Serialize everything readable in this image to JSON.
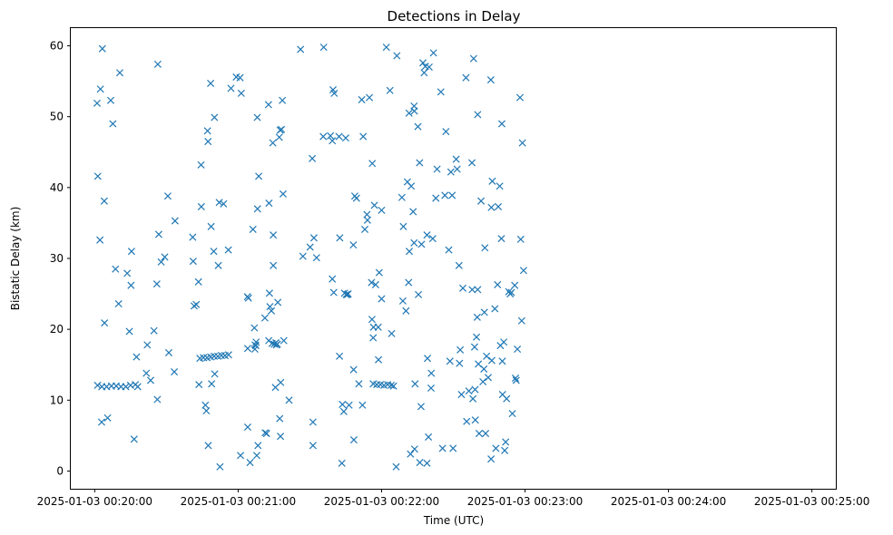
{
  "chart_data": {
    "type": "scatter",
    "title": "Detections in Delay",
    "xlabel": "Time (UTC)",
    "ylabel": "Bistatic Delay (km)",
    "marker": "x",
    "color": "#1f77b4",
    "x_unit": "seconds after 2025-01-03 00:20:00",
    "xlim": [
      -10,
      310
    ],
    "ylim": [
      -2.5,
      62.5
    ],
    "xticks": [
      {
        "value": 0,
        "label": "2025-01-03 00:20:00"
      },
      {
        "value": 60,
        "label": "2025-01-03 00:21:00"
      },
      {
        "value": 120,
        "label": "2025-01-03 00:22:00"
      },
      {
        "value": 180,
        "label": "2025-01-03 00:23:00"
      },
      {
        "value": 240,
        "label": "2025-01-03 00:24:00"
      },
      {
        "value": 300,
        "label": "2025-01-03 00:25:00"
      }
    ],
    "yticks": [
      {
        "value": 0,
        "label": "0"
      },
      {
        "value": 10,
        "label": "10"
      },
      {
        "value": 20,
        "label": "20"
      },
      {
        "value": 30,
        "label": "30"
      },
      {
        "value": 40,
        "label": "40"
      },
      {
        "value": 50,
        "label": "50"
      },
      {
        "value": 60,
        "label": "60"
      }
    ],
    "points": [
      [
        1,
        51.9
      ],
      [
        1.3,
        41.6
      ],
      [
        2.2,
        32.6
      ],
      [
        2.4,
        53.9
      ],
      [
        3.2,
        59.6
      ],
      [
        4,
        38.1
      ],
      [
        4.1,
        20.9
      ],
      [
        5.4,
        7.5
      ],
      [
        2.9,
        6.9
      ],
      [
        6.7,
        52.3
      ],
      [
        7.6,
        49
      ],
      [
        8.7,
        28.5
      ],
      [
        10.5,
        56.2
      ],
      [
        10,
        23.6
      ],
      [
        13.6,
        27.9
      ],
      [
        14.5,
        19.7
      ],
      [
        15.4,
        31
      ],
      [
        15.2,
        26.2
      ],
      [
        16.5,
        4.5
      ],
      [
        17.5,
        16.1
      ],
      [
        1.2,
        12.1
      ],
      [
        3,
        11.9
      ],
      [
        5,
        11.9
      ],
      [
        7,
        12
      ],
      [
        9,
        12
      ],
      [
        11,
        11.9
      ],
      [
        13,
        11.9
      ],
      [
        15,
        12.1
      ],
      [
        17,
        12.2
      ],
      [
        18,
        11.9
      ],
      [
        21.6,
        13.8
      ],
      [
        22,
        17.8
      ],
      [
        23.4,
        12.8
      ],
      [
        24.8,
        19.8
      ],
      [
        26,
        26.4
      ],
      [
        26.2,
        10.1
      ],
      [
        26.4,
        57.4
      ],
      [
        26.8,
        33.4
      ],
      [
        27.8,
        29.5
      ],
      [
        29.3,
        30.2
      ],
      [
        30.6,
        38.8
      ],
      [
        31,
        16.7
      ],
      [
        33.3,
        14
      ],
      [
        33.6,
        35.3
      ],
      [
        41,
        33
      ],
      [
        41.2,
        29.6
      ],
      [
        41.6,
        23.3
      ],
      [
        42.5,
        23.5
      ],
      [
        43.4,
        26.7
      ],
      [
        43.6,
        12.2
      ],
      [
        44.6,
        37.3
      ],
      [
        44.5,
        43.2
      ],
      [
        46.3,
        9.3
      ],
      [
        46.7,
        8.5
      ],
      [
        47.2,
        48
      ],
      [
        47.4,
        46.5
      ],
      [
        47.5,
        3.6
      ],
      [
        48.5,
        54.7
      ],
      [
        48.7,
        34.5
      ],
      [
        48.9,
        12.3
      ],
      [
        49.8,
        31
      ],
      [
        50.1,
        49.9
      ],
      [
        50.2,
        13.7
      ],
      [
        51.7,
        29
      ],
      [
        52.1,
        37.9
      ],
      [
        52.4,
        0.6
      ],
      [
        53.9,
        37.7
      ],
      [
        55.9,
        31.2
      ],
      [
        57,
        54
      ],
      [
        59.2,
        55.6
      ],
      [
        60.8,
        55.5
      ],
      [
        61.3,
        53.3
      ],
      [
        44,
        15.9
      ],
      [
        45.5,
        16
      ],
      [
        47,
        16
      ],
      [
        48.5,
        16.1
      ],
      [
        50,
        16.2
      ],
      [
        51.5,
        16.2
      ],
      [
        53,
        16.3
      ],
      [
        54.5,
        16.3
      ],
      [
        56,
        16.4
      ],
      [
        61,
        2.2
      ],
      [
        63.9,
        24.6
      ],
      [
        64.3,
        24.4
      ],
      [
        64,
        6.2
      ],
      [
        64,
        17.3
      ],
      [
        65,
        1.2
      ],
      [
        66.2,
        34.1
      ],
      [
        66.8,
        20.2
      ],
      [
        67,
        17.2
      ],
      [
        67.1,
        17.8
      ],
      [
        67.4,
        17.7
      ],
      [
        67.5,
        18.2
      ],
      [
        67.8,
        2.2
      ],
      [
        68,
        49.9
      ],
      [
        68.1,
        37
      ],
      [
        68.3,
        3.6
      ],
      [
        68.6,
        41.6
      ],
      [
        71.2,
        21.6
      ],
      [
        71.3,
        5.4
      ],
      [
        71.9,
        5.3
      ],
      [
        72.7,
        51.7
      ],
      [
        72.9,
        37.8
      ],
      [
        72.8,
        18.4
      ],
      [
        73.1,
        25.1
      ],
      [
        73.3,
        23.2
      ],
      [
        73.9,
        22.6
      ],
      [
        74.2,
        18
      ],
      [
        74.5,
        46.3
      ],
      [
        74.7,
        33.3
      ],
      [
        74.7,
        29
      ],
      [
        75.1,
        17.9
      ],
      [
        75.6,
        11.8
      ],
      [
        75.8,
        18.1
      ],
      [
        76,
        17.8
      ],
      [
        76.4,
        17.9
      ],
      [
        76.6,
        23.8
      ],
      [
        77.2,
        47.1
      ],
      [
        77.4,
        7.4
      ],
      [
        77.6,
        48.1
      ],
      [
        77.7,
        4.9
      ],
      [
        77.8,
        12.5
      ],
      [
        78.1,
        48.2
      ],
      [
        78.5,
        52.3
      ],
      [
        78.8,
        39.1
      ],
      [
        79.1,
        18.4
      ],
      [
        81.3,
        10
      ],
      [
        86.1,
        59.5
      ],
      [
        87.1,
        30.3
      ],
      [
        90.1,
        31.6
      ],
      [
        91,
        44.1
      ],
      [
        91.3,
        6.9
      ],
      [
        91.7,
        32.9
      ],
      [
        91.3,
        3.6
      ],
      [
        92.8,
        30.1
      ],
      [
        95.8,
        59.8
      ],
      [
        95.6,
        47.2
      ],
      [
        98.6,
        47.3
      ],
      [
        99.4,
        46.6
      ],
      [
        99.4,
        27.1
      ],
      [
        99.7,
        53.8
      ],
      [
        100,
        25.2
      ],
      [
        100.2,
        53.3
      ],
      [
        102.2,
        47.2
      ],
      [
        102.4,
        16.2
      ],
      [
        102.5,
        32.9
      ],
      [
        103.4,
        1.1
      ],
      [
        103.6,
        9.4
      ],
      [
        104.2,
        8.4
      ],
      [
        104.5,
        25.1
      ],
      [
        105,
        47
      ],
      [
        105.2,
        24.9
      ],
      [
        105.7,
        24.9
      ],
      [
        106,
        25
      ],
      [
        106.4,
        9.3
      ],
      [
        108.2,
        31.9
      ],
      [
        108.3,
        14.3
      ],
      [
        108.4,
        4.4
      ],
      [
        108.8,
        38.8
      ],
      [
        109.5,
        38.5
      ],
      [
        110.5,
        12.3
      ],
      [
        111.7,
        52.4
      ],
      [
        112,
        9.3
      ],
      [
        112.3,
        47.2
      ],
      [
        113,
        34.1
      ],
      [
        113.9,
        36.2
      ],
      [
        114.1,
        35.4
      ],
      [
        114.9,
        52.7
      ],
      [
        115.8,
        26.6
      ],
      [
        116,
        21.4
      ],
      [
        116.1,
        43.4
      ],
      [
        116.5,
        18.8
      ],
      [
        116.6,
        20.3
      ],
      [
        117,
        37.5
      ],
      [
        117.5,
        26.3
      ],
      [
        118.7,
        15.7
      ],
      [
        118.6,
        20.3
      ],
      [
        119,
        28
      ],
      [
        120,
        24.3
      ],
      [
        120,
        36.8
      ],
      [
        116.5,
        12.3
      ],
      [
        118,
        12.2
      ],
      [
        119.5,
        12.2
      ],
      [
        121,
        12.1
      ],
      [
        122.5,
        12.2
      ],
      [
        124,
        12.1
      ],
      [
        125,
        12
      ],
      [
        122,
        59.8
      ],
      [
        123.5,
        53.7
      ],
      [
        124.2,
        19.4
      ],
      [
        126.1,
        0.6
      ],
      [
        126.4,
        58.6
      ],
      [
        128.5,
        38.6
      ],
      [
        128.9,
        24
      ],
      [
        129.1,
        34.5
      ],
      [
        130.2,
        22.6
      ],
      [
        130.8,
        40.8
      ],
      [
        131.3,
        26.6
      ],
      [
        131.5,
        50.5
      ],
      [
        131.6,
        31
      ],
      [
        132.1,
        2.4
      ],
      [
        132.4,
        40.2
      ],
      [
        133.2,
        36.6
      ],
      [
        133.6,
        32.2
      ],
      [
        133.6,
        51.5
      ],
      [
        133.7,
        50.8
      ],
      [
        133.8,
        3.1
      ],
      [
        134,
        12.3
      ],
      [
        135.2,
        48.6
      ],
      [
        135.4,
        24.9
      ],
      [
        135.9,
        43.5
      ],
      [
        136,
        1.2
      ],
      [
        136.5,
        9.1
      ],
      [
        136.7,
        32
      ],
      [
        137.3,
        57.6
      ],
      [
        137.8,
        56.2
      ],
      [
        138.3,
        57.1
      ],
      [
        139,
        33.3
      ],
      [
        139.2,
        15.9
      ],
      [
        139,
        1.1
      ],
      [
        139.6,
        4.8
      ],
      [
        139.9,
        57
      ],
      [
        140.7,
        11.7
      ],
      [
        140.8,
        13.8
      ],
      [
        141.4,
        32.8
      ],
      [
        141.7,
        59
      ],
      [
        142.7,
        38.5
      ],
      [
        143.2,
        42.6
      ],
      [
        144.8,
        53.5
      ],
      [
        145.5,
        3.2
      ],
      [
        146.5,
        38.9
      ],
      [
        146.9,
        47.9
      ],
      [
        148.1,
        31.2
      ],
      [
        148.6,
        15.5
      ],
      [
        149,
        42.2
      ],
      [
        149.5,
        38.9
      ],
      [
        149.9,
        3.2
      ],
      [
        151.2,
        44
      ],
      [
        151.6,
        42.6
      ],
      [
        152.4,
        29
      ],
      [
        152.6,
        15.2
      ],
      [
        152.9,
        17.1
      ],
      [
        153.4,
        10.8
      ],
      [
        154,
        25.8
      ],
      [
        155.3,
        55.5
      ],
      [
        155.6,
        7
      ],
      [
        156.5,
        11.3
      ],
      [
        157.8,
        43.5
      ],
      [
        157.9,
        25.6
      ],
      [
        158.5,
        58.2
      ],
      [
        158.2,
        10.2
      ],
      [
        158.9,
        17.5
      ],
      [
        159.1,
        11.5
      ],
      [
        159.2,
        7.2
      ],
      [
        159.7,
        18.9
      ],
      [
        160,
        21.7
      ],
      [
        160.2,
        50.3
      ],
      [
        160.2,
        25.6
      ],
      [
        160.5,
        15.1
      ],
      [
        160.8,
        5.3
      ],
      [
        161.6,
        38.1
      ],
      [
        162.4,
        12.6
      ],
      [
        162.8,
        14.4
      ],
      [
        163,
        22.4
      ],
      [
        163.2,
        31.5
      ],
      [
        163.5,
        5.3
      ],
      [
        163.9,
        16.2
      ],
      [
        164.6,
        13.2
      ],
      [
        165.7,
        55.2
      ],
      [
        165.8,
        1.7
      ],
      [
        165.9,
        37.2
      ],
      [
        166.1,
        15.6
      ],
      [
        166.3,
        40.9
      ],
      [
        167.4,
        22.9
      ],
      [
        167.8,
        3.2
      ],
      [
        168.5,
        26.3
      ],
      [
        168.8,
        37.3
      ],
      [
        169.4,
        40.2
      ],
      [
        169.7,
        17.7
      ],
      [
        170.1,
        32.8
      ],
      [
        170.3,
        49
      ],
      [
        170.5,
        15.5
      ],
      [
        170.6,
        10.8
      ],
      [
        171.1,
        18.2
      ],
      [
        171.5,
        2.9
      ],
      [
        171.9,
        4.1
      ],
      [
        172.3,
        10.2
      ],
      [
        173.2,
        25.3
      ],
      [
        173.8,
        25
      ],
      [
        174.3,
        25.2
      ],
      [
        174.7,
        8.1
      ],
      [
        175.7,
        26.2
      ],
      [
        176,
        13.1
      ],
      [
        176.3,
        12.8
      ],
      [
        176.8,
        17.2
      ],
      [
        177.9,
        52.7
      ],
      [
        178.2,
        32.7
      ],
      [
        178.6,
        21.2
      ],
      [
        178.9,
        46.3
      ],
      [
        179.4,
        28.3
      ]
    ]
  }
}
